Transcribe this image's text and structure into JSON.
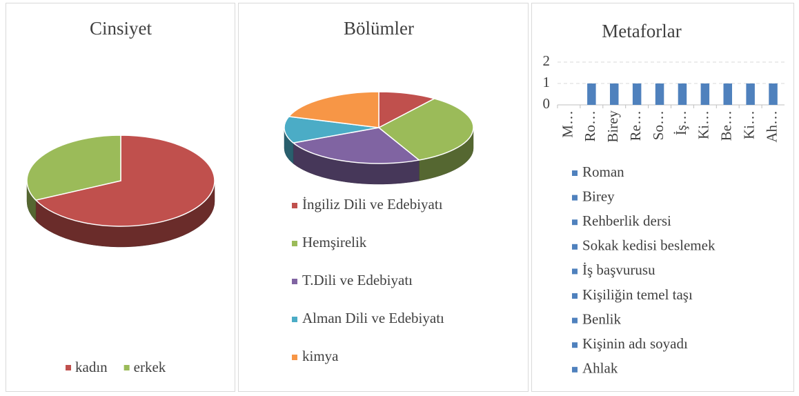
{
  "chart_data": [
    {
      "type": "pie",
      "title": "Cinsiyet",
      "categories": [
        "kadın",
        "erkek"
      ],
      "values": [
        68,
        32
      ],
      "colors": [
        "#c0504d",
        "#9bbb59"
      ],
      "legend": "bottom"
    },
    {
      "type": "pie",
      "title": "Bölümler",
      "categories": [
        "İngiliz Dili ve Edebiyatı",
        "Hemşirelik",
        "T.Dili ve Edebiyatı",
        "Alman Dili ve Edebiyatı",
        "kimya"
      ],
      "values": [
        10,
        33,
        25,
        12,
        20
      ],
      "colors": [
        "#c0504d",
        "#9bbb59",
        "#8064a2",
        "#4bacc6",
        "#f79646"
      ],
      "legend": "bottom"
    },
    {
      "type": "bar",
      "title": "Metaforlar",
      "categories": [
        "M…",
        "Ro…",
        "Birey",
        "Re…",
        "So…",
        "İş…",
        "Ki…",
        "Be…",
        "Ki…",
        "Ah…"
      ],
      "values": [
        0,
        1,
        1,
        1,
        1,
        1,
        1,
        1,
        1,
        1
      ],
      "color": "#4f81bd",
      "ylim": [
        0,
        2
      ],
      "yticks": [
        0,
        1,
        2
      ],
      "grid": true,
      "legend_position": "bottom",
      "legend": [
        "Roman",
        "Birey",
        "Rehberlik dersi",
        "Sokak kedisi beslemek",
        "İş başvurusu",
        "Kişiliğin temel taşı",
        "Benlik",
        "Kişinin adı soyadı",
        "Ahlak"
      ]
    }
  ]
}
